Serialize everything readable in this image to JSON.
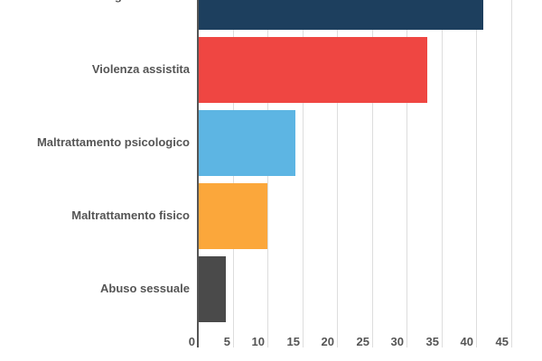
{
  "chart_data": {
    "type": "bar",
    "orientation": "horizontal",
    "title": "",
    "xlabel": "",
    "ylabel": "",
    "categories": [
      "Patologie delle cure",
      "Violenza assistita",
      "Maltrattamento psicologico",
      "Maltrattamento fisico",
      "Abuso sessuale"
    ],
    "values": [
      41,
      33,
      14,
      10,
      4
    ],
    "colors": [
      "#1d3f5e",
      "#ef4642",
      "#5db5e3",
      "#fba73b",
      "#4a4a4a"
    ],
    "xlim": [
      0,
      45
    ],
    "xticks": [
      "0",
      "5",
      "10",
      "15",
      "20",
      "25",
      "30",
      "35",
      "40",
      "45"
    ],
    "grid": true,
    "legend": "none"
  }
}
